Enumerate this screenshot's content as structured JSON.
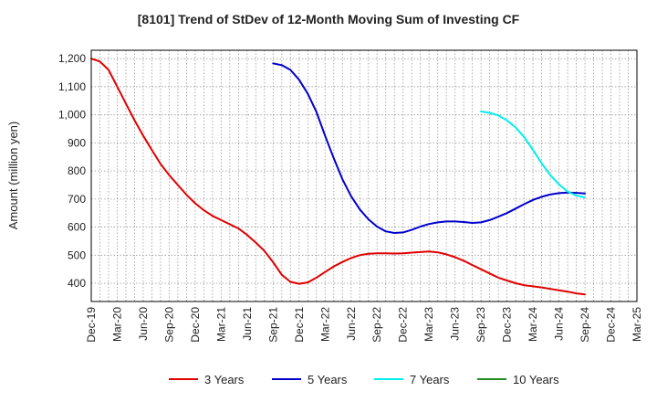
{
  "chart_data": {
    "type": "line",
    "title": "[8101]  Trend of StDev of 12-Month Moving Sum of Investing CF",
    "ylabel": "Amount (million yen)",
    "xlabel": "",
    "ylim": [
      335,
      1230
    ],
    "yticks": [
      400,
      500,
      600,
      700,
      800,
      900,
      1000,
      1100,
      1200
    ],
    "ytick_labels": [
      "400",
      "500",
      "600",
      "700",
      "800",
      "900",
      "1,000",
      "1,100",
      "1,200"
    ],
    "xlim": [
      "2019-12",
      "2025-03"
    ],
    "xtick_labels": [
      "Dec-19",
      "Mar-20",
      "Jun-20",
      "Sep-20",
      "Dec-20",
      "Mar-21",
      "Jun-21",
      "Sep-21",
      "Dec-21",
      "Mar-22",
      "Jun-22",
      "Sep-22",
      "Dec-22",
      "Mar-23",
      "Jun-23",
      "Sep-23",
      "Dec-23",
      "Mar-24",
      "Jun-24",
      "Sep-24",
      "Dec-24",
      "Mar-25"
    ],
    "grid": true,
    "legend_position": "bottom",
    "series": [
      {
        "name": "3 Years",
        "color": "#e00000",
        "x": [
          "2019-12",
          "2020-01",
          "2020-02",
          "2020-03",
          "2020-04",
          "2020-05",
          "2020-06",
          "2020-07",
          "2020-08",
          "2020-09",
          "2020-10",
          "2020-11",
          "2020-12",
          "2021-01",
          "2021-02",
          "2021-03",
          "2021-04",
          "2021-05",
          "2021-06",
          "2021-07",
          "2021-08",
          "2021-09",
          "2021-10",
          "2021-11",
          "2021-12",
          "2022-01",
          "2022-02",
          "2022-03",
          "2022-04",
          "2022-05",
          "2022-06",
          "2022-07",
          "2022-08",
          "2022-09",
          "2022-10",
          "2022-11",
          "2022-12",
          "2023-01",
          "2023-02",
          "2023-03",
          "2023-04",
          "2023-05",
          "2023-06",
          "2023-07",
          "2023-08",
          "2023-09",
          "2023-10",
          "2023-11",
          "2023-12",
          "2024-01",
          "2024-02",
          "2024-03",
          "2024-04",
          "2024-05",
          "2024-06",
          "2024-07",
          "2024-08",
          "2024-09"
        ],
        "y": [
          1200,
          1190,
          1160,
          1100,
          1040,
          980,
          925,
          875,
          825,
          785,
          750,
          715,
          685,
          660,
          640,
          625,
          610,
          595,
          572,
          545,
          515,
          475,
          430,
          405,
          398,
          403,
          420,
          440,
          460,
          476,
          490,
          500,
          505,
          507,
          507,
          506,
          507,
          509,
          511,
          513,
          510,
          503,
          493,
          480,
          465,
          450,
          435,
          420,
          410,
          400,
          393,
          389,
          385,
          380,
          375,
          370,
          364,
          360
        ]
      },
      {
        "name": "5 Years",
        "color": "#0000cc",
        "x": [
          "2021-09",
          "2021-10",
          "2021-11",
          "2021-12",
          "2022-01",
          "2022-02",
          "2022-03",
          "2022-04",
          "2022-05",
          "2022-06",
          "2022-07",
          "2022-08",
          "2022-09",
          "2022-10",
          "2022-11",
          "2022-12",
          "2023-01",
          "2023-02",
          "2023-03",
          "2023-04",
          "2023-05",
          "2023-06",
          "2023-07",
          "2023-08",
          "2023-09",
          "2023-10",
          "2023-11",
          "2023-12",
          "2024-01",
          "2024-02",
          "2024-03",
          "2024-04",
          "2024-05",
          "2024-06",
          "2024-07",
          "2024-08",
          "2024-09"
        ],
        "y": [
          1183,
          1177,
          1160,
          1125,
          1075,
          1010,
          925,
          845,
          770,
          710,
          663,
          628,
          602,
          585,
          579,
          581,
          590,
          602,
          611,
          617,
          620,
          620,
          618,
          615,
          617,
          625,
          637,
          650,
          666,
          682,
          697,
          708,
          716,
          721,
          723,
          722,
          720
        ]
      },
      {
        "name": "7 Years",
        "color": "#00eeee",
        "x": [
          "2023-09",
          "2023-10",
          "2023-11",
          "2023-12",
          "2024-01",
          "2024-02",
          "2024-03",
          "2024-04",
          "2024-05",
          "2024-06",
          "2024-07",
          "2024-08",
          "2024-09"
        ],
        "y": [
          1012,
          1007,
          998,
          980,
          955,
          920,
          875,
          827,
          785,
          752,
          727,
          712,
          706
        ]
      },
      {
        "name": "10 Years",
        "color": "#228b22",
        "x": [],
        "y": []
      }
    ]
  }
}
